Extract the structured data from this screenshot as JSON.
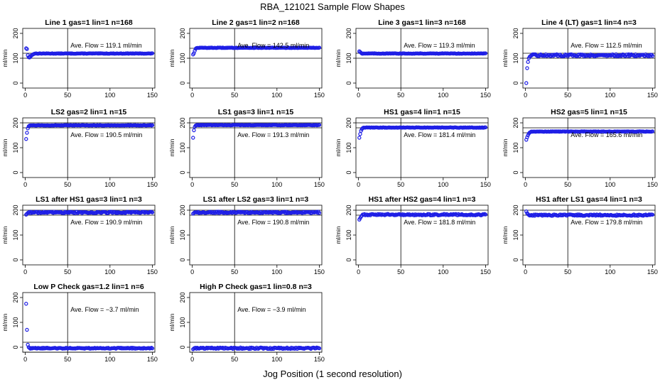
{
  "title": "RBA_121021  Sample Flow Shapes",
  "xlabel": "Jog Position (1 second resolution)",
  "colors": {
    "points": "#1f1fe6",
    "axes": "#000000"
  },
  "chart_data": [
    {
      "type": "scatter",
      "title": "Line 1 gas=1 lin=1 n=168",
      "ylabel": "ml/min",
      "annotation": "Ave. Flow =  119.1  ml/min",
      "xlim": [
        0,
        150
      ],
      "ylim": [
        -20,
        220
      ],
      "xticks": [
        0,
        50,
        100,
        150
      ],
      "yticks": [
        0,
        100,
        200
      ],
      "vline": 50,
      "hlines": [
        100,
        120
      ],
      "start": [
        [
          1,
          140
        ],
        [
          2,
          137
        ],
        [
          3,
          112
        ],
        [
          4,
          104
        ],
        [
          5,
          103
        ],
        [
          6,
          106
        ],
        [
          7,
          110
        ],
        [
          8,
          113
        ],
        [
          9,
          115
        ],
        [
          10,
          117
        ]
      ],
      "steady": 119,
      "noise": 1
    },
    {
      "type": "scatter",
      "title": "Line 2 gas=1 lin=2 n=168",
      "ylabel": "ml/min",
      "annotation": "Ave. Flow =  142.5  ml/min",
      "xlim": [
        0,
        150
      ],
      "ylim": [
        -20,
        220
      ],
      "xticks": [
        0,
        50,
        100,
        150
      ],
      "yticks": [
        0,
        100,
        200
      ],
      "vline": 50,
      "hlines": [
        100,
        140
      ],
      "start": [
        [
          1,
          115
        ],
        [
          2,
          120
        ],
        [
          3,
          130
        ],
        [
          4,
          138
        ],
        [
          5,
          141
        ]
      ],
      "steady": 142,
      "noise": 1
    },
    {
      "type": "scatter",
      "title": "Line 3 gas=1 lin=3 n=168",
      "ylabel": "ml/min",
      "annotation": "Ave. Flow =  119.3  ml/min",
      "xlim": [
        0,
        150
      ],
      "ylim": [
        -20,
        220
      ],
      "xticks": [
        0,
        50,
        100,
        150
      ],
      "yticks": [
        0,
        100,
        200
      ],
      "vline": 50,
      "hlines": [
        100,
        120
      ],
      "start": [
        [
          1,
          128
        ],
        [
          2,
          125
        ],
        [
          3,
          122
        ]
      ],
      "steady": 119,
      "noise": 1
    },
    {
      "type": "scatter",
      "title": "Line 4 (LT) gas=1 lin=4 n=3",
      "ylabel": "ml/min",
      "annotation": "Ave. Flow =  112.5  ml/min",
      "xlim": [
        0,
        150
      ],
      "ylim": [
        -20,
        220
      ],
      "xticks": [
        0,
        50,
        100,
        150
      ],
      "yticks": [
        0,
        100,
        200
      ],
      "vline": 50,
      "hlines": [
        100,
        120
      ],
      "start": [
        [
          1,
          0
        ],
        [
          2,
          60
        ],
        [
          3,
          85
        ],
        [
          4,
          100
        ],
        [
          5,
          106
        ],
        [
          6,
          109
        ]
      ],
      "steady": 112,
      "noise": 4
    },
    {
      "type": "scatter",
      "title": "LS2 gas=2 lin=1 n=15",
      "ylabel": "ml/min",
      "annotation": "Ave. Flow =  190.5  ml/min",
      "xlim": [
        0,
        150
      ],
      "ylim": [
        -20,
        220
      ],
      "xticks": [
        0,
        50,
        100,
        150
      ],
      "yticks": [
        0,
        100,
        200
      ],
      "vline": 50,
      "hlines": [
        180,
        200
      ],
      "start": [
        [
          1,
          135
        ],
        [
          2,
          160
        ],
        [
          3,
          178
        ],
        [
          4,
          186
        ],
        [
          5,
          189
        ]
      ],
      "steady": 190,
      "noise": 1
    },
    {
      "type": "scatter",
      "title": "LS1 gas=3 lin=1 n=15",
      "ylabel": "ml/min",
      "annotation": "Ave. Flow =  191.3  ml/min",
      "xlim": [
        0,
        150
      ],
      "ylim": [
        -20,
        220
      ],
      "xticks": [
        0,
        50,
        100,
        150
      ],
      "yticks": [
        0,
        100,
        200
      ],
      "vline": 50,
      "hlines": [
        180,
        200
      ],
      "start": [
        [
          1,
          140
        ],
        [
          2,
          170
        ],
        [
          3,
          184
        ],
        [
          4,
          189
        ]
      ],
      "steady": 191,
      "noise": 1
    },
    {
      "type": "scatter",
      "title": "HS1 gas=4 lin=1 n=15",
      "ylabel": "ml/min",
      "annotation": "Ave. Flow =  181.4  ml/min",
      "xlim": [
        0,
        150
      ],
      "ylim": [
        -20,
        220
      ],
      "xticks": [
        0,
        50,
        100,
        150
      ],
      "yticks": [
        0,
        100,
        200
      ],
      "vline": 50,
      "hlines": [
        180,
        200
      ],
      "start": [
        [
          1,
          140
        ],
        [
          2,
          155
        ],
        [
          3,
          168
        ],
        [
          4,
          175
        ],
        [
          5,
          179
        ]
      ],
      "steady": 181,
      "noise": 1
    },
    {
      "type": "scatter",
      "title": "HS2 gas=5 lin=1 n=15",
      "ylabel": "ml/min",
      "annotation": "Ave. Flow =  165.6  ml/min",
      "xlim": [
        0,
        150
      ],
      "ylim": [
        -20,
        220
      ],
      "xticks": [
        0,
        50,
        100,
        150
      ],
      "yticks": [
        0,
        100,
        200
      ],
      "vline": 50,
      "hlines": [
        160,
        180
      ],
      "start": [
        [
          1,
          132
        ],
        [
          2,
          142
        ],
        [
          3,
          150
        ],
        [
          4,
          157
        ],
        [
          5,
          161
        ],
        [
          6,
          163
        ]
      ],
      "steady": 165,
      "noise": 1
    },
    {
      "type": "scatter",
      "title": "LS1 after HS1 gas=3 lin=1 n=3",
      "ylabel": "ml/min",
      "annotation": "Ave. Flow =  190.9  ml/min",
      "xlim": [
        0,
        150
      ],
      "ylim": [
        -20,
        220
      ],
      "xticks": [
        0,
        50,
        100,
        150
      ],
      "yticks": [
        0,
        100,
        200
      ],
      "vline": 50,
      "hlines": [
        180,
        200
      ],
      "start": [
        [
          1,
          182
        ],
        [
          2,
          186
        ],
        [
          3,
          189
        ]
      ],
      "steady": 191,
      "noise": 3
    },
    {
      "type": "scatter",
      "title": "LS1 after LS2 gas=3 lin=1 n=3",
      "ylabel": "ml/min",
      "annotation": "Ave. Flow =  190.8  ml/min",
      "xlim": [
        0,
        150
      ],
      "ylim": [
        -20,
        220
      ],
      "xticks": [
        0,
        50,
        100,
        150
      ],
      "yticks": [
        0,
        100,
        200
      ],
      "vline": 50,
      "hlines": [
        180,
        200
      ],
      "start": [
        [
          1,
          186
        ],
        [
          2,
          189
        ]
      ],
      "steady": 191,
      "noise": 3
    },
    {
      "type": "scatter",
      "title": "HS1 after HS2 gas=4 lin=1 n=3",
      "ylabel": "ml/min",
      "annotation": "Ave. Flow =  181.8  ml/min",
      "xlim": [
        0,
        150
      ],
      "ylim": [
        -20,
        220
      ],
      "xticks": [
        0,
        50,
        100,
        150
      ],
      "yticks": [
        0,
        100,
        200
      ],
      "vline": 50,
      "hlines": [
        180,
        200
      ],
      "start": [
        [
          1,
          162
        ],
        [
          2,
          168
        ],
        [
          3,
          174
        ],
        [
          4,
          178
        ]
      ],
      "steady": 182,
      "noise": 3
    },
    {
      "type": "scatter",
      "title": "HS1 after LS1 gas=4 lin=1 n=3",
      "ylabel": "ml/min",
      "annotation": "Ave. Flow =  179.8  ml/min",
      "xlim": [
        0,
        150
      ],
      "ylim": [
        -20,
        220
      ],
      "xticks": [
        0,
        50,
        100,
        150
      ],
      "yticks": [
        0,
        100,
        200
      ],
      "vline": 50,
      "hlines": [
        180,
        200
      ],
      "start": [
        [
          1,
          195
        ],
        [
          2,
          188
        ],
        [
          3,
          184
        ]
      ],
      "steady": 180,
      "noise": 3
    },
    {
      "type": "scatter",
      "title": "Low P Check gas=1.2 lin=1 n=6",
      "ylabel": "ml/min",
      "annotation": "Ave. Flow =  −3.7  ml/min",
      "xlim": [
        0,
        150
      ],
      "ylim": [
        -20,
        220
      ],
      "xticks": [
        0,
        50,
        100,
        150
      ],
      "yticks": [
        0,
        100,
        200
      ],
      "vline": 50,
      "hlines": [
        -20,
        20
      ],
      "start": [
        [
          1,
          175
        ],
        [
          2,
          70
        ],
        [
          3,
          10
        ],
        [
          4,
          0
        ]
      ],
      "steady": -4,
      "noise": 2
    },
    {
      "type": "scatter",
      "title": "High P Check gas=1 lin=0.8 n=3",
      "ylabel": "ml/min",
      "annotation": "Ave. Flow =  −3.9  ml/min",
      "xlim": [
        0,
        150
      ],
      "ylim": [
        -20,
        220
      ],
      "xticks": [
        0,
        50,
        100,
        150
      ],
      "yticks": [
        0,
        100,
        200
      ],
      "vline": 50,
      "hlines": [
        -20,
        20
      ],
      "start": [
        [
          1,
          -8
        ],
        [
          2,
          -5
        ]
      ],
      "steady": -4,
      "noise": 3
    }
  ]
}
